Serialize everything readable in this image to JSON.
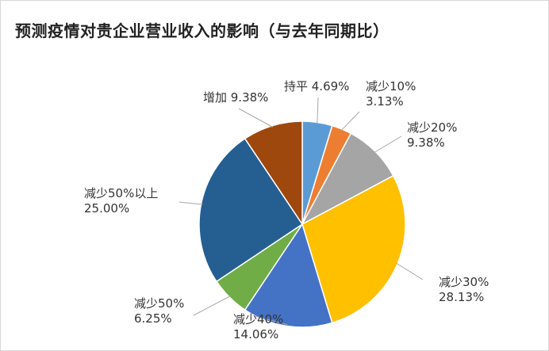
{
  "chart_data": {
    "type": "pie",
    "title": "预测疫情对贵企业营业收入的影响（与去年同期比）",
    "legend": "none",
    "slices": [
      {
        "name": "持平",
        "value": 4.69,
        "label_lines": [
          "持平 4.69%"
        ],
        "color": "#5b9bd5"
      },
      {
        "name": "减少10%",
        "value": 3.13,
        "label_lines": [
          "减少10%",
          "3.13%"
        ],
        "color": "#ed7d31"
      },
      {
        "name": "减少20%",
        "value": 9.38,
        "label_lines": [
          "减少20%",
          "9.38%"
        ],
        "color": "#a5a5a5"
      },
      {
        "name": "减少30%",
        "value": 28.13,
        "label_lines": [
          "减少30%",
          "28.13%"
        ],
        "color": "#ffc000"
      },
      {
        "name": "减少40%",
        "value": 14.06,
        "label_lines": [
          "减少40%",
          "14.06%"
        ],
        "color": "#4472c4"
      },
      {
        "name": "减少50%",
        "value": 6.25,
        "label_lines": [
          "减少50%",
          "6.25%"
        ],
        "color": "#70ad47"
      },
      {
        "name": "减少50%以上",
        "value": 25.0,
        "label_lines": [
          "减少50%以上",
          "25.00%"
        ],
        "color": "#255e91"
      },
      {
        "name": "增加",
        "value": 9.38,
        "label_lines": [
          "增加 9.38%"
        ],
        "color": "#9e480e"
      }
    ]
  }
}
